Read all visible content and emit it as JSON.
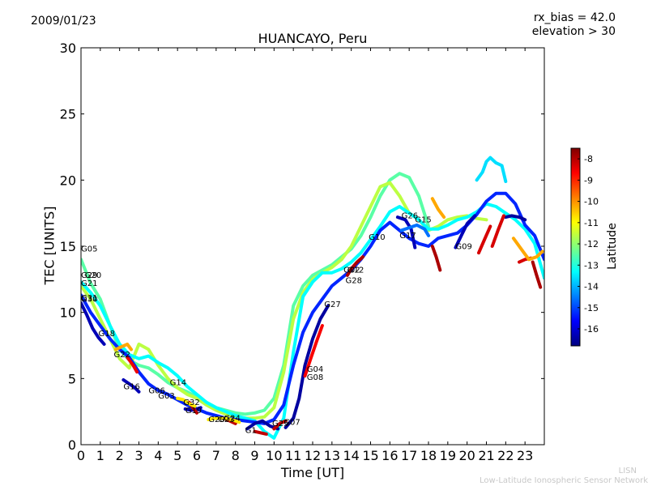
{
  "header": {
    "date": "2009/01/23",
    "title": "HUANCAYO, Peru",
    "rx_bias": "rx_bias = 42.0",
    "elevation": "elevation > 30"
  },
  "footer": {
    "credit_short": "LISN",
    "credit_long": "Low-Latitude Ionospheric Sensor Network"
  },
  "colors": {
    "colormap": [
      "#00007f",
      "#0000ff",
      "#007fff",
      "#00ffff",
      "#7fff7f",
      "#ffff00",
      "#ff7f00",
      "#ff0000",
      "#7f0000"
    ],
    "background": "#ffffff"
  },
  "chart_data": {
    "type": "line",
    "title": "HUANCAYO, Peru",
    "xlabel": "Time [UT]",
    "ylabel": "TEC [UNITS]",
    "xlim": [
      0,
      24
    ],
    "ylim": [
      0,
      30
    ],
    "x_ticks": [
      "0",
      "1",
      "2",
      "3",
      "4",
      "5",
      "6",
      "7",
      "8",
      "9",
      "10",
      "11",
      "12",
      "13",
      "14",
      "15",
      "16",
      "17",
      "18",
      "19",
      "20",
      "21",
      "22",
      "23"
    ],
    "y_ticks": [
      "0",
      "5",
      "10",
      "15",
      "20",
      "25",
      "30"
    ],
    "grid": false,
    "colorbar": {
      "label": "Latitude",
      "range": [
        -16.8,
        -7.5
      ],
      "ticks": [
        "-8",
        "-9",
        "-10",
        "-11",
        "-12",
        "-13",
        "-14",
        "-15",
        "-16"
      ]
    },
    "satellite_labels": [
      {
        "text": "G05",
        "x": 0.0,
        "y": 14.6
      },
      {
        "text": "G29",
        "x": 0.0,
        "y": 12.6
      },
      {
        "text": "G20",
        "x": 0.2,
        "y": 12.6
      },
      {
        "text": "G21",
        "x": 0.0,
        "y": 12.0
      },
      {
        "text": "G31",
        "x": 0.0,
        "y": 10.9
      },
      {
        "text": "G30",
        "x": 0.0,
        "y": 10.8
      },
      {
        "text": "G18",
        "x": 0.9,
        "y": 8.2
      },
      {
        "text": "G22",
        "x": 1.7,
        "y": 6.6
      },
      {
        "text": "G16",
        "x": 2.2,
        "y": 4.2
      },
      {
        "text": "G06",
        "x": 3.5,
        "y": 3.9
      },
      {
        "text": "G03",
        "x": 4.0,
        "y": 3.5
      },
      {
        "text": "G14",
        "x": 4.6,
        "y": 4.5
      },
      {
        "text": "G32",
        "x": 5.3,
        "y": 3.0
      },
      {
        "text": "G19",
        "x": 5.4,
        "y": 2.4
      },
      {
        "text": "G20",
        "x": 6.6,
        "y": 1.7
      },
      {
        "text": "G23",
        "x": 7.1,
        "y": 1.7
      },
      {
        "text": "G24",
        "x": 7.4,
        "y": 1.8
      },
      {
        "text": "G1",
        "x": 8.5,
        "y": 0.9
      },
      {
        "text": "G25",
        "x": 9.9,
        "y": 1.4
      },
      {
        "text": "G07",
        "x": 10.5,
        "y": 1.5
      },
      {
        "text": "G04",
        "x": 11.7,
        "y": 5.5
      },
      {
        "text": "G08",
        "x": 11.7,
        "y": 4.9
      },
      {
        "text": "G27",
        "x": 12.6,
        "y": 10.4
      },
      {
        "text": "G02",
        "x": 13.6,
        "y": 13.0
      },
      {
        "text": "G12",
        "x": 13.8,
        "y": 13.0
      },
      {
        "text": "G28",
        "x": 13.7,
        "y": 12.2
      },
      {
        "text": "G10",
        "x": 14.9,
        "y": 15.5
      },
      {
        "text": "G17",
        "x": 16.5,
        "y": 15.6
      },
      {
        "text": "G26",
        "x": 16.6,
        "y": 17.1
      },
      {
        "text": "G15",
        "x": 17.3,
        "y": 16.8
      },
      {
        "text": "G09",
        "x": 19.4,
        "y": 14.8
      }
    ],
    "series": [
      {
        "latitude": -12.5,
        "x": [
          0,
          0.5,
          1,
          1.5,
          2,
          2.5,
          3,
          3.5,
          4,
          4.5,
          5,
          5.5,
          6,
          6.5,
          7,
          7.5,
          8,
          8.5,
          9,
          9.5,
          10,
          10.5,
          11,
          11.5,
          12,
          12.5,
          13,
          13.5,
          14,
          14.5,
          15,
          15.5,
          16,
          16.5,
          17,
          17.5,
          18
        ],
        "y": [
          14.0,
          12.2,
          11.0,
          9.0,
          7.2,
          6.4,
          6.0,
          5.8,
          5.3,
          4.7,
          4.3,
          4.0,
          3.6,
          3.2,
          2.8,
          2.6,
          2.4,
          2.3,
          2.4,
          2.6,
          3.5,
          6.0,
          10.5,
          12.0,
          12.8,
          13.2,
          13.6,
          14.2,
          14.8,
          15.8,
          17.2,
          18.8,
          20.0,
          20.5,
          20.2,
          18.8,
          16.5
        ]
      },
      {
        "latitude": -11.6,
        "x": [
          0,
          0.5,
          1,
          1.5,
          2,
          2.5,
          3,
          3.5,
          4,
          4.5,
          5,
          5.5,
          6,
          6.5,
          7,
          7.5,
          8,
          8.5,
          9,
          9.5,
          10,
          10.5,
          11,
          11.5,
          12,
          12.5,
          13,
          13.5,
          14,
          14.5,
          15,
          15.5,
          16,
          16.5,
          17,
          17.5,
          18,
          18.5,
          19,
          19.5,
          20,
          20.5,
          21
        ],
        "y": [
          12.0,
          11.0,
          9.5,
          8.0,
          6.5,
          5.8,
          7.6,
          7.2,
          6.0,
          5.0,
          4.3,
          3.8,
          3.5,
          3.0,
          2.6,
          2.3,
          2.1,
          2.0,
          2.0,
          2.1,
          2.8,
          5.5,
          9.5,
          11.5,
          12.5,
          13.0,
          13.4,
          14.0,
          15.0,
          16.5,
          18.0,
          19.5,
          19.8,
          18.8,
          17.5,
          17.0,
          16.2,
          16.5,
          17.0,
          17.2,
          17.3,
          17.1,
          17.0
        ]
      },
      {
        "latitude": -13.3,
        "x": [
          0,
          0.5,
          1,
          1.5,
          2,
          2.5,
          3,
          3.5,
          4,
          4.5,
          5,
          5.5,
          6,
          6.5,
          7,
          7.5,
          8,
          8.5,
          9,
          9.5,
          10,
          10.5,
          11,
          11.5,
          12,
          12.5,
          13,
          13.5,
          14,
          14.5,
          15,
          15.5,
          16,
          16.5,
          17,
          17.5,
          18,
          18.5,
          19,
          19.5,
          20,
          20.5,
          21,
          21.5,
          22,
          22.5,
          23,
          23.5,
          24
        ],
        "y": [
          12.3,
          11.5,
          10.5,
          9.0,
          7.6,
          6.8,
          6.5,
          6.7,
          6.2,
          5.8,
          5.2,
          4.4,
          3.8,
          3.2,
          2.8,
          2.5,
          2.2,
          2.0,
          1.8,
          1.0,
          0.5,
          2.0,
          7.0,
          11.2,
          12.3,
          13.0,
          13.0,
          13.3,
          13.8,
          14.5,
          15.5,
          16.5,
          17.6,
          18.0,
          17.5,
          17.0,
          16.3,
          16.3,
          16.6,
          17.0,
          17.2,
          17.6,
          18.2,
          18.0,
          17.5,
          17.0,
          16.3,
          15.2,
          12.6
        ]
      },
      {
        "latitude": -15.3,
        "x": [
          0,
          0.5,
          1,
          1.5,
          2,
          2.5,
          3,
          3.5,
          4,
          4.5,
          5,
          5.5,
          6,
          6.5,
          7,
          7.5,
          8,
          8.5,
          9,
          9.5,
          10,
          10.5,
          11,
          11.5,
          12,
          12.5,
          13,
          13.5,
          14,
          14.5,
          15,
          15.5,
          16,
          16.5,
          17,
          17.5,
          18,
          18.5,
          19,
          19.5,
          20,
          20.5,
          21,
          21.5,
          22,
          22.5,
          23,
          23.5,
          24
        ],
        "y": [
          11.3,
          10.0,
          9.0,
          8.0,
          7.2,
          6.6,
          5.5,
          4.6,
          4.1,
          3.8,
          3.4,
          3.0,
          2.7,
          2.4,
          2.2,
          2.0,
          1.9,
          1.8,
          1.7,
          1.6,
          1.9,
          3.0,
          6.0,
          8.5,
          10.0,
          11.0,
          12.0,
          12.6,
          13.2,
          14.0,
          15.0,
          16.2,
          16.8,
          16.2,
          15.6,
          15.2,
          15.0,
          15.6,
          15.8,
          16.0,
          16.6,
          17.4,
          18.4,
          19.0,
          19.0,
          18.2,
          16.6,
          15.8,
          14.0
        ]
      },
      {
        "latitude": -16.3,
        "x": [
          0,
          0.3,
          0.6,
          0.9,
          1.2
        ],
        "y": [
          10.7,
          9.8,
          8.8,
          8.1,
          7.6
        ]
      },
      {
        "latitude": -16.3,
        "x": [
          2.2,
          2.5,
          2.8,
          3.0
        ],
        "y": [
          4.9,
          4.6,
          4.3,
          4.0
        ]
      },
      {
        "latitude": -16.3,
        "x": [
          5.4,
          5.7,
          6.0,
          6.2
        ],
        "y": [
          2.7,
          2.6,
          2.7,
          2.8
        ]
      },
      {
        "latitude": -16.5,
        "x": [
          8.6,
          9.0,
          9.4,
          9.8,
          10.2
        ],
        "y": [
          1.2,
          1.6,
          1.8,
          1.4,
          1.2
        ]
      },
      {
        "latitude": -16.5,
        "x": [
          10.6,
          11.0,
          11.3,
          11.6,
          12.0,
          12.4,
          12.8
        ],
        "y": [
          1.3,
          2.0,
          3.5,
          6.0,
          8.0,
          9.5,
          10.5
        ]
      },
      {
        "latitude": -16.3,
        "x": [
          16.4,
          16.8,
          17.1,
          17.3
        ],
        "y": [
          17.2,
          17.0,
          16.3,
          14.9
        ]
      },
      {
        "latitude": -16.3,
        "x": [
          19.4,
          19.7,
          20.0,
          20.4
        ],
        "y": [
          14.9,
          15.8,
          16.7,
          17.3
        ]
      },
      {
        "latitude": -16.5,
        "x": [
          22.0,
          22.3,
          22.7,
          23.0
        ],
        "y": [
          17.2,
          17.3,
          17.2,
          17.0
        ]
      },
      {
        "latitude": -8.6,
        "x": [
          11.6,
          11.9,
          12.2,
          12.5
        ],
        "y": [
          5.2,
          6.5,
          7.8,
          9.0
        ]
      },
      {
        "latitude": -7.9,
        "x": [
          13.8,
          14.0,
          14.3,
          14.6
        ],
        "y": [
          12.8,
          13.3,
          13.8,
          14.2
        ]
      },
      {
        "latitude": -7.9,
        "x": [
          18.2,
          18.4,
          18.6
        ],
        "y": [
          15.0,
          14.2,
          13.2
        ]
      },
      {
        "latitude": -8.3,
        "x": [
          20.6,
          20.9,
          21.2
        ],
        "y": [
          14.5,
          15.5,
          16.5
        ]
      },
      {
        "latitude": -8.3,
        "x": [
          21.3,
          21.6,
          21.9
        ],
        "y": [
          15.0,
          16.2,
          17.3
        ]
      },
      {
        "latitude": -8.3,
        "x": [
          22.7,
          23.0,
          23.3
        ],
        "y": [
          13.8,
          14.0,
          14.1
        ]
      },
      {
        "latitude": -7.9,
        "x": [
          23.4,
          23.6,
          23.8
        ],
        "y": [
          13.8,
          12.8,
          11.9
        ]
      },
      {
        "latitude": -8.5,
        "x": [
          2.4,
          2.7,
          2.9
        ],
        "y": [
          6.6,
          6.0,
          5.5
        ]
      },
      {
        "latitude": -8.1,
        "x": [
          5.6,
          5.8,
          6.0
        ],
        "y": [
          3.2,
          2.8,
          2.4
        ]
      },
      {
        "latitude": -8.1,
        "x": [
          7.4,
          7.7,
          8.0
        ],
        "y": [
          2.0,
          1.8,
          1.6
        ]
      },
      {
        "latitude": -8.1,
        "x": [
          9.0,
          9.3,
          9.6
        ],
        "y": [
          1.0,
          0.9,
          0.8
        ]
      },
      {
        "latitude": -8.1,
        "x": [
          10.0,
          10.3,
          10.6
        ],
        "y": [
          1.2,
          1.6,
          1.8
        ]
      },
      {
        "latitude": -10.2,
        "x": [
          1.8,
          2.1,
          2.4,
          2.6
        ],
        "y": [
          7.2,
          7.4,
          7.6,
          7.2
        ]
      },
      {
        "latitude": -10.2,
        "x": [
          18.2,
          18.5,
          18.8
        ],
        "y": [
          18.6,
          17.8,
          17.2
        ]
      },
      {
        "latitude": -10.2,
        "x": [
          22.4,
          22.8,
          23.2,
          23.6,
          23.9
        ],
        "y": [
          15.6,
          14.8,
          14.0,
          14.2,
          14.6
        ]
      },
      {
        "latitude": -10.8,
        "x": [
          5.0,
          5.3,
          5.6,
          5.9
        ],
        "y": [
          3.5,
          3.4,
          3.1,
          2.9
        ]
      },
      {
        "latitude": -10.8,
        "x": [
          6.6,
          7.0,
          7.4,
          7.8,
          8.2
        ],
        "y": [
          1.9,
          2.0,
          2.0,
          1.9,
          1.7
        ]
      },
      {
        "latitude": -13.6,
        "x": [
          20.5,
          20.8,
          21.0,
          21.2,
          21.5,
          21.8,
          22.0
        ],
        "y": [
          20.0,
          20.6,
          21.4,
          21.7,
          21.3,
          21.1,
          19.9
        ]
      },
      {
        "latitude": -14.6,
        "x": [
          16.6,
          17.0,
          17.4,
          17.8,
          18.0
        ],
        "y": [
          16.2,
          16.4,
          16.6,
          16.3,
          15.8
        ]
      }
    ]
  }
}
